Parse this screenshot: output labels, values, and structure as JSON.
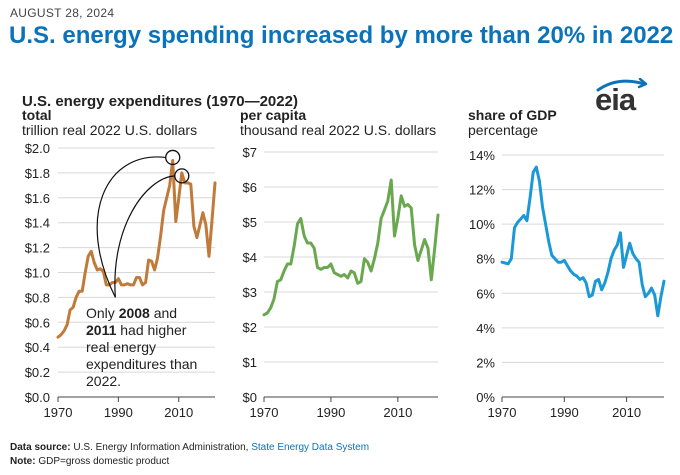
{
  "date": "AUGUST 28, 2024",
  "headline": "U.S. energy spending increased by more than 20% in 2022",
  "logo": {
    "text": "eia",
    "icon": "eia-logo-icon",
    "color": "#0a73b9"
  },
  "footer": {
    "source_label": "Data source:",
    "source_text": "U.S. Energy Information Administration,",
    "source_link": "State Energy Data System",
    "note_label": "Note:",
    "note_text": "GDP=gross domestic product"
  },
  "chart_data": [
    {
      "type": "line",
      "title": "U.S. energy expenditures (1970—2022)",
      "series_label": "total",
      "ylabel": "trillion real 2022 U.S. dollars",
      "color": "#c07a3a",
      "xlim": [
        1970,
        2022
      ],
      "ylim": [
        0,
        2.0
      ],
      "xticks": [
        1970,
        1990,
        2010
      ],
      "xtick_labels": [
        "1970",
        "1990",
        "2010"
      ],
      "yticks": [
        0,
        0.2,
        0.4,
        0.6,
        0.8,
        1.0,
        1.2,
        1.4,
        1.6,
        1.8,
        2.0
      ],
      "ytick_labels": [
        "$0.0",
        "$0.2",
        "$0.4",
        "$0.6",
        "$0.8",
        "$1.0",
        "$1.2",
        "$1.4",
        "$1.6",
        "$1.8",
        "$2.0"
      ],
      "x": [
        1970,
        1971,
        1972,
        1973,
        1974,
        1975,
        1976,
        1977,
        1978,
        1979,
        1980,
        1981,
        1982,
        1983,
        1984,
        1985,
        1986,
        1987,
        1988,
        1989,
        1990,
        1991,
        1992,
        1993,
        1994,
        1995,
        1996,
        1997,
        1998,
        1999,
        2000,
        2001,
        2002,
        2003,
        2004,
        2005,
        2006,
        2007,
        2008,
        2009,
        2010,
        2011,
        2012,
        2013,
        2014,
        2015,
        2016,
        2017,
        2018,
        2019,
        2020,
        2021,
        2022
      ],
      "y": [
        0.48,
        0.5,
        0.53,
        0.58,
        0.7,
        0.72,
        0.8,
        0.85,
        0.85,
        1.0,
        1.13,
        1.17,
        1.08,
        1.02,
        1.03,
        1.01,
        0.9,
        0.9,
        0.92,
        0.92,
        0.95,
        0.9,
        0.9,
        0.91,
        0.9,
        0.9,
        0.96,
        0.96,
        0.9,
        0.92,
        1.1,
        1.09,
        1.02,
        1.12,
        1.3,
        1.5,
        1.6,
        1.7,
        1.9,
        1.41,
        1.6,
        1.8,
        1.72,
        1.72,
        1.71,
        1.37,
        1.28,
        1.38,
        1.48,
        1.38,
        1.13,
        1.42,
        1.72
      ],
      "annotation": {
        "prefix": "Only",
        "year1": "2008",
        "conjunction": "and",
        "year2": "2011",
        "rest": "had higher",
        "line3": "real energy",
        "line4": "expenditures than",
        "line5": "2022.",
        "highlight_points": [
          [
            2008,
            1.9
          ],
          [
            2011,
            1.8
          ]
        ],
        "anchor": [
          1989,
          0.8
        ]
      }
    },
    {
      "type": "line",
      "series_label": "per capita",
      "ylabel": "thousand real 2022 U.S. dollars",
      "color": "#6aa84f",
      "xlim": [
        1970,
        2022
      ],
      "ylim": [
        0,
        7
      ],
      "xticks": [
        1970,
        1990,
        2010
      ],
      "xtick_labels": [
        "1970",
        "1990",
        "2010"
      ],
      "yticks": [
        0,
        1,
        2,
        3,
        4,
        5,
        6,
        7
      ],
      "ytick_labels": [
        "$0",
        "$1",
        "$2",
        "$3",
        "$4",
        "$5",
        "$6",
        "$7"
      ],
      "x": [
        1970,
        1971,
        1972,
        1973,
        1974,
        1975,
        1976,
        1977,
        1978,
        1979,
        1980,
        1981,
        1982,
        1983,
        1984,
        1985,
        1986,
        1987,
        1988,
        1989,
        1990,
        1991,
        1992,
        1993,
        1994,
        1995,
        1996,
        1997,
        1998,
        1999,
        2000,
        2001,
        2002,
        2003,
        2004,
        2005,
        2006,
        2007,
        2008,
        2009,
        2010,
        2011,
        2012,
        2013,
        2014,
        2015,
        2016,
        2017,
        2018,
        2019,
        2020,
        2021,
        2022
      ],
      "y": [
        2.35,
        2.4,
        2.55,
        2.8,
        3.3,
        3.35,
        3.6,
        3.8,
        3.8,
        4.3,
        4.95,
        5.1,
        4.6,
        4.4,
        4.4,
        4.25,
        3.7,
        3.65,
        3.7,
        3.7,
        3.8,
        3.55,
        3.5,
        3.45,
        3.5,
        3.4,
        3.6,
        3.55,
        3.25,
        3.3,
        3.95,
        3.85,
        3.6,
        3.95,
        4.4,
        5.1,
        5.35,
        5.6,
        6.2,
        4.6,
        5.1,
        5.75,
        5.45,
        5.5,
        5.4,
        4.35,
        3.9,
        4.2,
        4.5,
        4.25,
        3.35,
        4.25,
        5.2
      ]
    },
    {
      "type": "line",
      "series_label": "share of GDP",
      "ylabel": "percentage",
      "color": "#1a99d6",
      "xlim": [
        1970,
        2022
      ],
      "ylim": [
        0,
        14
      ],
      "xticks": [
        1970,
        1990,
        2010
      ],
      "xtick_labels": [
        "1970",
        "1990",
        "2010"
      ],
      "yticks": [
        0,
        2,
        4,
        6,
        8,
        10,
        12,
        14
      ],
      "ytick_labels": [
        "0%",
        "2%",
        "4%",
        "6%",
        "8%",
        "10%",
        "12%",
        "14%"
      ],
      "x": [
        1970,
        1971,
        1972,
        1973,
        1974,
        1975,
        1976,
        1977,
        1978,
        1979,
        1980,
        1981,
        1982,
        1983,
        1984,
        1985,
        1986,
        1987,
        1988,
        1989,
        1990,
        1991,
        1992,
        1993,
        1994,
        1995,
        1996,
        1997,
        1998,
        1999,
        2000,
        2001,
        2002,
        2003,
        2004,
        2005,
        2006,
        2007,
        2008,
        2009,
        2010,
        2011,
        2012,
        2013,
        2014,
        2015,
        2016,
        2017,
        2018,
        2019,
        2020,
        2021,
        2022
      ],
      "y": [
        7.8,
        7.75,
        7.7,
        8.0,
        9.8,
        10.1,
        10.3,
        10.5,
        10.2,
        11.5,
        13.0,
        13.3,
        12.5,
        11.0,
        10.0,
        9.0,
        8.2,
        8.0,
        7.8,
        7.8,
        7.9,
        7.6,
        7.3,
        7.1,
        7.0,
        6.8,
        6.9,
        6.6,
        5.8,
        5.9,
        6.7,
        6.8,
        6.2,
        6.6,
        7.2,
        8.0,
        8.5,
        8.8,
        9.5,
        7.5,
        8.2,
        8.9,
        8.3,
        8.0,
        7.8,
        6.5,
        5.8,
        6.0,
        6.3,
        5.9,
        4.7,
        5.8,
        6.7
      ]
    }
  ]
}
